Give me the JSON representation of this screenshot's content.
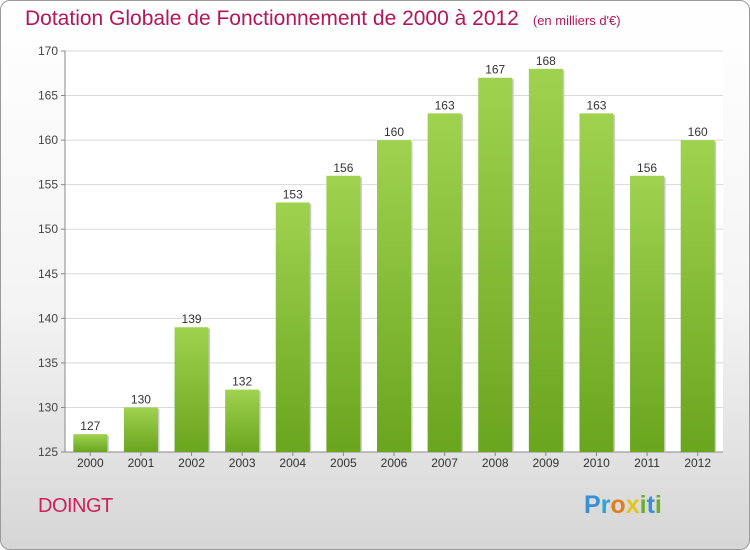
{
  "title": "Dotation Globale de Fonctionnement de 2000 à 2012",
  "unit": "(en milliers d'€)",
  "commune": "DOINGT",
  "logo": {
    "letters": [
      {
        "char": "P",
        "color": "#3a8fd4"
      },
      {
        "char": "r",
        "color": "#2aa5d8"
      },
      {
        "char": "o",
        "color": "#e07d1c"
      },
      {
        "char": "x",
        "color": "#e2c520"
      },
      {
        "char": "i",
        "color": "#6cae2a"
      },
      {
        "char": "t",
        "color": "#3a8fd4"
      },
      {
        "char": "i",
        "color": "#6cae2a"
      }
    ]
  },
  "colors": {
    "bar_light": "#9fd24f",
    "bar_dark": "#6aa51e",
    "title": "#b4165a"
  },
  "chart_data": {
    "type": "bar",
    "title": "Dotation Globale de Fonctionnement de 2000 à 2012",
    "categories": [
      "2000",
      "2001",
      "2002",
      "2003",
      "2004",
      "2005",
      "2006",
      "2007",
      "2008",
      "2009",
      "2010",
      "2011",
      "2012"
    ],
    "values": [
      127,
      130,
      139,
      132,
      153,
      156,
      160,
      163,
      167,
      168,
      163,
      156,
      160
    ],
    "ylim": [
      125,
      170
    ],
    "yticks": [
      125,
      130,
      135,
      140,
      145,
      150,
      155,
      160,
      165,
      170
    ],
    "grid": true,
    "data_labels": true
  }
}
